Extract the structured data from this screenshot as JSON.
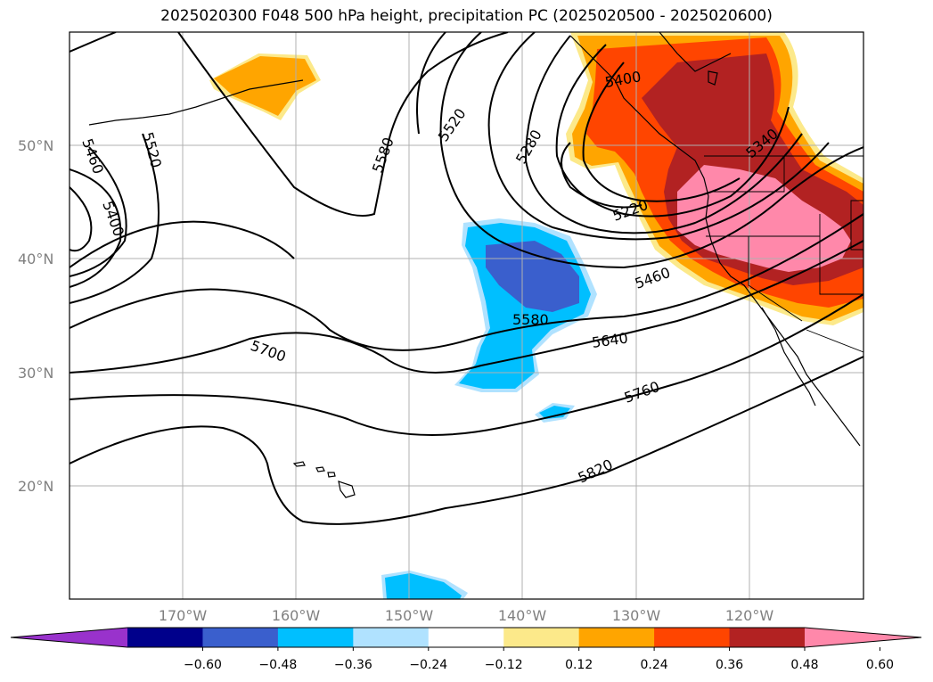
{
  "title": "2025020300 F048 500 hPa height, precipitation PC (2025020500 - 2025020600)",
  "map": {
    "lon_range": [
      -180,
      -110
    ],
    "lat_range": [
      10,
      60
    ],
    "lat_ticks": [
      "20°N",
      "30°N",
      "40°N",
      "50°N"
    ],
    "lon_ticks": [
      "170°W",
      "160°W",
      "150°W",
      "140°W",
      "130°W",
      "120°W"
    ],
    "contour_labels": [
      "5460",
      "5520",
      "5400",
      "5580",
      "5520",
      "5280",
      "5400",
      "5220",
      "5340",
      "5460",
      "5580",
      "5640",
      "5700",
      "5760",
      "5820"
    ],
    "grid": true
  },
  "colorbar": {
    "ticks": [
      "−0.60",
      "−0.48",
      "−0.36",
      "−0.24",
      "−0.12",
      "0.12",
      "0.24",
      "0.36",
      "0.48",
      "0.60"
    ],
    "colors": [
      "#9932cc",
      "#00008b",
      "#3a5fcd",
      "#00bfff",
      "#b0e2ff",
      "#ffffff",
      "#fce98a",
      "#ffa500",
      "#ff4500",
      "#b22222",
      "#ff88aa"
    ],
    "extend": "both"
  }
}
